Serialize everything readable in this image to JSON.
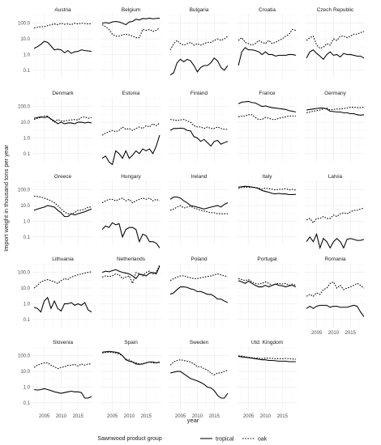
{
  "chart_data": {
    "type": "line",
    "layout": "facet-grid",
    "xlabel": "year",
    "ylabel": "Import weight in thousand tons per year",
    "x": [
      2002,
      2003,
      2004,
      2005,
      2006,
      2007,
      2008,
      2009,
      2010,
      2011,
      2012,
      2013,
      2014,
      2015,
      2016,
      2017,
      2018,
      2019
    ],
    "xlim": [
      2001.5,
      2019.5
    ],
    "x_ticks": [
      2005,
      2010,
      2015
    ],
    "y_scale": "log10",
    "ylim": [
      0.03,
      400
    ],
    "y_ticks": [
      0.1,
      1,
      10,
      100
    ],
    "y_tick_labels": [
      "0.1",
      "1.0",
      "10.0",
      "100.0"
    ],
    "legend": {
      "title": "Sawnwood product group",
      "position": "bottom",
      "entries": [
        {
          "name": "tropical",
          "style": "solid"
        },
        {
          "name": "oak",
          "style": "dotted"
        }
      ]
    },
    "panels": [
      {
        "name": "Austria",
        "tropical": [
          2.5,
          3.2,
          4.5,
          7,
          6,
          3.5,
          2,
          2.2,
          2,
          1.3,
          1.8,
          1.2,
          1.5,
          1.6,
          2,
          1.8,
          1.7,
          1.6
        ],
        "oak": [
          50,
          55,
          60,
          60,
          70,
          80,
          90,
          80,
          100,
          85,
          90,
          80,
          100,
          90,
          100,
          95,
          90,
          95
        ]
      },
      {
        "name": "Belgium",
        "tropical": [
          100,
          110,
          100,
          120,
          130,
          120,
          100,
          80,
          120,
          130,
          180,
          160,
          200,
          190,
          210,
          190,
          200,
          210
        ],
        "oak": [
          80,
          60,
          40,
          20,
          15,
          15,
          18,
          20,
          18,
          15,
          12,
          12,
          40,
          35,
          40,
          30,
          35,
          50
        ]
      },
      {
        "name": "Bulgaria",
        "tropical": [
          0.05,
          0.07,
          0.3,
          0.5,
          0.35,
          0.5,
          0.4,
          0.2,
          0.08,
          0.15,
          0.2,
          0.2,
          0.3,
          0.6,
          0.4,
          0.15,
          0.1,
          0.2
        ],
        "oak": [
          2,
          5,
          8,
          5,
          4,
          5,
          6,
          4,
          5,
          4,
          5,
          6,
          6,
          8,
          10,
          8,
          10,
          15
        ]
      },
      {
        "name": "Croatia",
        "tropical": [
          0.2,
          1.5,
          2.8,
          2,
          2,
          1.8,
          1.5,
          1,
          1.5,
          1,
          1,
          0.8,
          0.9,
          0.9,
          0.9,
          1,
          1,
          0.9
        ],
        "oak": [
          8,
          12,
          6,
          5,
          4,
          5,
          8,
          6,
          5,
          8,
          5,
          6,
          8,
          10,
          15,
          20,
          40,
          35
        ]
      },
      {
        "name": "Czech Republic",
        "tropical": [
          0.6,
          1.5,
          2,
          1.2,
          0.8,
          0.5,
          1,
          1.5,
          0.9,
          1,
          0.7,
          1.2,
          1,
          1,
          0.9,
          0.8,
          0.8,
          0.6
        ],
        "oak": [
          8,
          12,
          15,
          4,
          2.5,
          3,
          5,
          4,
          10,
          8,
          15,
          15,
          12,
          15,
          20,
          20,
          25,
          30
        ]
      },
      {
        "name": "Denmark",
        "tropical": [
          18,
          20,
          22,
          20,
          22,
          16,
          12,
          8,
          10,
          8,
          9,
          9,
          8,
          10,
          10,
          9,
          10,
          9
        ],
        "oak": [
          15,
          18,
          20,
          25,
          25,
          15,
          10,
          15,
          12,
          12,
          13,
          14,
          15,
          14,
          20,
          22,
          18,
          20
        ]
      },
      {
        "name": "Estonia",
        "tropical": [
          0.05,
          0.07,
          0.03,
          0.02,
          0.15,
          0.1,
          0.05,
          0.15,
          0.05,
          0.08,
          0.15,
          0.1,
          0.2,
          0.15,
          0.2,
          0.1,
          0.3,
          1.5
        ],
        "oak": [
          1.5,
          2,
          2.5,
          3,
          2.5,
          3,
          5,
          3.5,
          4,
          3,
          4,
          5,
          4,
          6,
          5,
          8,
          6,
          9
        ]
      },
      {
        "name": "Finland",
        "tropical": [
          3,
          4,
          4,
          4.2,
          4,
          3,
          2.8,
          1.2,
          1,
          0.6,
          0.8,
          0.5,
          0.3,
          0.6,
          0.7,
          0.4,
          0.5,
          0.6
        ],
        "oak": [
          15,
          14,
          13,
          14,
          15,
          12,
          10,
          6,
          5,
          5,
          4,
          5,
          4,
          4,
          5,
          4,
          3.5,
          3.5
        ]
      },
      {
        "name": "France",
        "tropical": [
          150,
          190,
          200,
          210,
          180,
          170,
          130,
          100,
          110,
          95,
          85,
          80,
          75,
          70,
          65,
          55,
          50,
          45
        ],
        "oak": [
          22,
          25,
          25,
          30,
          30,
          20,
          15,
          15,
          20,
          18,
          15,
          15,
          18,
          20,
          22,
          25,
          25,
          25
        ]
      },
      {
        "name": "Germany",
        "tropical": [
          60,
          65,
          70,
          75,
          80,
          80,
          70,
          50,
          48,
          45,
          45,
          40,
          40,
          35,
          35,
          30,
          28,
          30
        ],
        "oak": [
          40,
          45,
          50,
          55,
          60,
          70,
          80,
          60,
          65,
          70,
          70,
          75,
          80,
          90,
          90,
          85,
          85,
          90
        ]
      },
      {
        "name": "Greece",
        "tropical": [
          5,
          6,
          7,
          8,
          10,
          9,
          8,
          5,
          3.5,
          2,
          2,
          3,
          2.5,
          3,
          3.5,
          4,
          5,
          6
        ],
        "oak": [
          40,
          38,
          35,
          30,
          25,
          20,
          15,
          10,
          6,
          4,
          3,
          3,
          3.5,
          5,
          5,
          6,
          8,
          8
        ]
      },
      {
        "name": "Hungary",
        "tropical": [
          0.3,
          0.5,
          0.4,
          0.8,
          0.6,
          0.7,
          0.1,
          0.3,
          0.4,
          0.4,
          0.3,
          0.05,
          0.15,
          0.12,
          0.05,
          0.05,
          0.04,
          0.02
        ],
        "oak": [
          15,
          20,
          25,
          25,
          20,
          25,
          30,
          20,
          25,
          15,
          20,
          25,
          30,
          25,
          30,
          20,
          25,
          20
        ]
      },
      {
        "name": "Ireland",
        "tropical": [
          25,
          35,
          35,
          30,
          20,
          15,
          10,
          9,
          8,
          7,
          6,
          7,
          8,
          9,
          10,
          8,
          12,
          15
        ],
        "oak": [
          5,
          6,
          8,
          10,
          7,
          8,
          9,
          7,
          6,
          5,
          4.5,
          4,
          3.5,
          3.5,
          3,
          3,
          3,
          3
        ]
      },
      {
        "name": "Italy",
        "tropical": [
          150,
          160,
          170,
          165,
          150,
          140,
          120,
          90,
          80,
          70,
          60,
          55,
          60,
          55,
          55,
          50,
          50,
          52
        ],
        "oak": [
          130,
          140,
          150,
          145,
          150,
          140,
          130,
          110,
          130,
          120,
          110,
          100,
          110,
          110,
          120,
          100,
          110,
          95
        ]
      },
      {
        "name": "Latvia",
        "tropical": [
          0.05,
          0.1,
          0.05,
          0.15,
          0.02,
          0.08,
          0.05,
          0.02,
          0.05,
          0.08,
          0.05,
          0.02,
          0.07,
          0.08,
          0.07,
          0.06,
          0.06,
          0.07
        ],
        "oak": [
          1.2,
          1.5,
          0.8,
          1.5,
          1.5,
          2,
          1.5,
          1.5,
          2.5,
          2,
          3,
          3.5,
          3,
          4,
          5,
          5,
          6,
          7
        ]
      },
      {
        "name": "Lithuania",
        "tropical": [
          0.6,
          0.5,
          0.3,
          1.5,
          2.5,
          0.5,
          1.5,
          0.5,
          0.35,
          1,
          1,
          1.2,
          0.8,
          1,
          0.8,
          1.2,
          0.4,
          0.3
        ],
        "oak": [
          10,
          15,
          25,
          30,
          35,
          30,
          25,
          20,
          30,
          40,
          35,
          50,
          60,
          70,
          80,
          90,
          100,
          110
        ]
      },
      {
        "name": "Netherlands",
        "tropical": [
          100,
          120,
          110,
          130,
          150,
          120,
          100,
          90,
          80,
          60,
          40,
          80,
          70,
          60,
          90,
          100,
          80,
          250
        ],
        "oak": [
          50,
          60,
          55,
          60,
          80,
          70,
          40,
          50,
          60,
          20,
          100,
          80,
          60,
          100,
          120,
          80,
          100,
          300
        ]
      },
      {
        "name": "Poland",
        "tropical": [
          4,
          5,
          8,
          12,
          12,
          11,
          9,
          8,
          6,
          6,
          5,
          4,
          4,
          3,
          2,
          2,
          1.5,
          1.2
        ],
        "oak": [
          30,
          40,
          50,
          60,
          60,
          50,
          45,
          40,
          40,
          45,
          50,
          55,
          60,
          70,
          80,
          70,
          60,
          55
        ]
      },
      {
        "name": "Portugal",
        "tropical": [
          30,
          25,
          20,
          28,
          20,
          15,
          12,
          12,
          15,
          12,
          15,
          18,
          15,
          14,
          12,
          14,
          15,
          12
        ],
        "oak": [
          40,
          35,
          30,
          35,
          25,
          20,
          18,
          20,
          25,
          20,
          15,
          18,
          20,
          18,
          20,
          15,
          18,
          15
        ]
      },
      {
        "name": "Romania",
        "tropical": [
          0.5,
          0.7,
          0.5,
          0.7,
          0.8,
          0.8,
          0.8,
          0.6,
          0.7,
          0.7,
          0.6,
          0.6,
          0.6,
          0.7,
          0.8,
          0.7,
          0.3,
          0.15
        ],
        "oak": [
          3,
          4,
          3,
          5,
          4,
          8,
          10,
          20,
          25,
          10,
          15,
          8,
          10,
          12,
          15,
          20,
          15,
          10
        ]
      },
      {
        "name": "Slovenia",
        "tropical": [
          0.7,
          0.65,
          0.7,
          0.8,
          0.7,
          0.6,
          0.5,
          0.45,
          0.4,
          0.45,
          0.5,
          0.55,
          0.5,
          0.5,
          0.45,
          0.2,
          0.2,
          0.25
        ],
        "oak": [
          18,
          25,
          30,
          35,
          35,
          25,
          20,
          15,
          18,
          20,
          25,
          25,
          28,
          22,
          30,
          25,
          30,
          30
        ]
      },
      {
        "name": "Spain",
        "tropical": [
          170,
          180,
          190,
          180,
          170,
          150,
          100,
          55,
          45,
          40,
          30,
          28,
          30,
          35,
          40,
          40,
          35,
          40
        ],
        "oak": [
          150,
          160,
          165,
          160,
          150,
          130,
          100,
          60,
          55,
          40,
          35,
          30,
          30,
          35,
          40,
          35,
          35,
          38
        ]
      },
      {
        "name": "Sweden",
        "tropical": [
          8,
          9,
          10,
          10,
          7,
          5,
          3.5,
          3,
          2.5,
          2,
          1.5,
          1,
          0.9,
          0.6,
          0.3,
          0.2,
          0.2,
          0.4
        ],
        "oak": [
          25,
          40,
          50,
          55,
          50,
          45,
          40,
          30,
          20,
          20,
          15,
          12,
          8,
          6,
          8,
          8,
          10,
          12
        ]
      },
      {
        "name": "Utd. Kingdom",
        "tropical": [
          90,
          85,
          80,
          75,
          70,
          65,
          60,
          55,
          55,
          50,
          50,
          48,
          45,
          45,
          45,
          42,
          42,
          42
        ],
        "oak": [
          100,
          95,
          85,
          80,
          75,
          70,
          70,
          65,
          70,
          70,
          68,
          65,
          65,
          65,
          68,
          65,
          62,
          60
        ]
      }
    ]
  }
}
